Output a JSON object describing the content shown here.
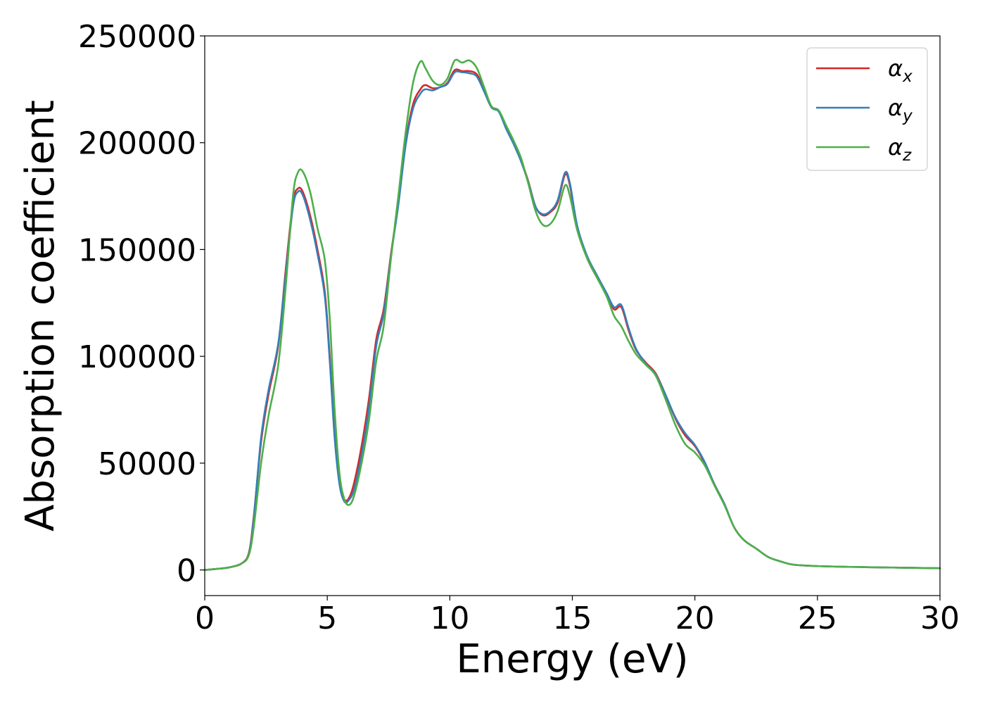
{
  "chart_data": {
    "type": "line",
    "title": "",
    "xlabel": "Energy (eV)",
    "ylabel": "Absorption coefficient",
    "xlim": [
      0,
      30
    ],
    "ylim": [
      -12000,
      250000
    ],
    "xticks": [
      0,
      5,
      10,
      15,
      20,
      25,
      30
    ],
    "yticks": [
      0,
      50000,
      100000,
      150000,
      200000,
      250000
    ],
    "grid": false,
    "legend_position": "top-right",
    "series": [
      {
        "name": "α_x",
        "label_base": "α",
        "label_sub": "x",
        "color": "#d62728",
        "points": [
          [
            0,
            0
          ],
          [
            0.5,
            500
          ],
          [
            1,
            1200
          ],
          [
            1.5,
            3000
          ],
          [
            1.8,
            8000
          ],
          [
            2,
            25000
          ],
          [
            2.3,
            60000
          ],
          [
            2.6,
            82000
          ],
          [
            3,
            105000
          ],
          [
            3.3,
            140000
          ],
          [
            3.6,
            172000
          ],
          [
            3.8,
            178500
          ],
          [
            4,
            177000
          ],
          [
            4.3,
            166000
          ],
          [
            4.6,
            150000
          ],
          [
            4.9,
            130000
          ],
          [
            5.1,
            100000
          ],
          [
            5.3,
            65000
          ],
          [
            5.5,
            42000
          ],
          [
            5.7,
            33000
          ],
          [
            5.9,
            34000
          ],
          [
            6.1,
            41000
          ],
          [
            6.4,
            58000
          ],
          [
            6.7,
            80000
          ],
          [
            7,
            108000
          ],
          [
            7.3,
            122000
          ],
          [
            7.6,
            148000
          ],
          [
            7.9,
            172000
          ],
          [
            8.2,
            200000
          ],
          [
            8.5,
            218000
          ],
          [
            8.8,
            225000
          ],
          [
            9,
            227000
          ],
          [
            9.3,
            225500
          ],
          [
            9.6,
            226000
          ],
          [
            9.9,
            228000
          ],
          [
            10.2,
            234000
          ],
          [
            10.5,
            233500
          ],
          [
            10.8,
            233500
          ],
          [
            11.1,
            232000
          ],
          [
            11.4,
            225000
          ],
          [
            11.7,
            217000
          ],
          [
            12,
            215000
          ],
          [
            12.3,
            207000
          ],
          [
            12.6,
            200000
          ],
          [
            12.9,
            192000
          ],
          [
            13.2,
            182000
          ],
          [
            13.5,
            170000
          ],
          [
            13.8,
            166000
          ],
          [
            14.1,
            167500
          ],
          [
            14.4,
            172000
          ],
          [
            14.7,
            185000
          ],
          [
            14.9,
            180000
          ],
          [
            15.2,
            160000
          ],
          [
            15.6,
            146000
          ],
          [
            16,
            137000
          ],
          [
            16.4,
            129000
          ],
          [
            16.7,
            122000
          ],
          [
            17,
            123000
          ],
          [
            17.3,
            112000
          ],
          [
            17.6,
            103000
          ],
          [
            18,
            97000
          ],
          [
            18.4,
            92000
          ],
          [
            18.8,
            82000
          ],
          [
            19.2,
            71000
          ],
          [
            19.6,
            63000
          ],
          [
            20,
            58000
          ],
          [
            20.4,
            50000
          ],
          [
            20.8,
            40000
          ],
          [
            21.2,
            31000
          ],
          [
            21.6,
            20000
          ],
          [
            22,
            14000
          ],
          [
            22.5,
            10000
          ],
          [
            23,
            6000
          ],
          [
            23.5,
            4000
          ],
          [
            24,
            2500
          ],
          [
            25,
            1800
          ],
          [
            27,
            1300
          ],
          [
            30,
            800
          ]
        ]
      },
      {
        "name": "α_y",
        "label_base": "α",
        "label_sub": "y",
        "color": "#377eb8",
        "points": [
          [
            0,
            0
          ],
          [
            0.5,
            500
          ],
          [
            1,
            1200
          ],
          [
            1.5,
            3000
          ],
          [
            1.8,
            7500
          ],
          [
            2,
            24000
          ],
          [
            2.3,
            62000
          ],
          [
            2.6,
            84000
          ],
          [
            3,
            106000
          ],
          [
            3.3,
            138000
          ],
          [
            3.6,
            170000
          ],
          [
            3.8,
            177000
          ],
          [
            4,
            175500
          ],
          [
            4.3,
            164000
          ],
          [
            4.6,
            148000
          ],
          [
            4.9,
            128000
          ],
          [
            5.1,
            98000
          ],
          [
            5.3,
            62000
          ],
          [
            5.5,
            40000
          ],
          [
            5.7,
            32000
          ],
          [
            5.9,
            33000
          ],
          [
            6.1,
            38000
          ],
          [
            6.4,
            54000
          ],
          [
            6.7,
            76000
          ],
          [
            7,
            105000
          ],
          [
            7.3,
            120000
          ],
          [
            7.6,
            147000
          ],
          [
            7.9,
            171000
          ],
          [
            8.2,
            199000
          ],
          [
            8.5,
            216000
          ],
          [
            8.8,
            223000
          ],
          [
            9,
            225000
          ],
          [
            9.3,
            224500
          ],
          [
            9.6,
            226000
          ],
          [
            9.9,
            227500
          ],
          [
            10.2,
            233000
          ],
          [
            10.5,
            233000
          ],
          [
            10.8,
            232500
          ],
          [
            11.1,
            231000
          ],
          [
            11.4,
            224000
          ],
          [
            11.7,
            216500
          ],
          [
            12,
            214500
          ],
          [
            12.3,
            206500
          ],
          [
            12.6,
            199500
          ],
          [
            12.9,
            191500
          ],
          [
            13.2,
            181500
          ],
          [
            13.5,
            170000
          ],
          [
            13.8,
            166500
          ],
          [
            14.1,
            168000
          ],
          [
            14.4,
            173000
          ],
          [
            14.7,
            186000
          ],
          [
            14.9,
            181000
          ],
          [
            15.2,
            161000
          ],
          [
            15.6,
            147000
          ],
          [
            16,
            138000
          ],
          [
            16.4,
            129500
          ],
          [
            16.7,
            123000
          ],
          [
            17,
            124000
          ],
          [
            17.3,
            113000
          ],
          [
            17.6,
            103500
          ],
          [
            18,
            96500
          ],
          [
            18.4,
            91500
          ],
          [
            18.8,
            82000
          ],
          [
            19.2,
            71500
          ],
          [
            19.6,
            64000
          ],
          [
            20,
            58500
          ],
          [
            20.4,
            50500
          ],
          [
            20.8,
            40000
          ],
          [
            21.2,
            31000
          ],
          [
            21.6,
            20000
          ],
          [
            22,
            14000
          ],
          [
            22.5,
            10000
          ],
          [
            23,
            6000
          ],
          [
            23.5,
            4000
          ],
          [
            24,
            2500
          ],
          [
            25,
            1800
          ],
          [
            27,
            1300
          ],
          [
            30,
            800
          ]
        ]
      },
      {
        "name": "α_z",
        "label_base": "α",
        "label_sub": "z",
        "color": "#4daf4a",
        "points": [
          [
            0,
            0
          ],
          [
            0.5,
            500
          ],
          [
            1,
            1200
          ],
          [
            1.5,
            3000
          ],
          [
            1.8,
            7000
          ],
          [
            2,
            20000
          ],
          [
            2.3,
            50000
          ],
          [
            2.6,
            72000
          ],
          [
            3,
            96000
          ],
          [
            3.3,
            132000
          ],
          [
            3.6,
            175000
          ],
          [
            3.8,
            186000
          ],
          [
            4,
            186500
          ],
          [
            4.3,
            177000
          ],
          [
            4.6,
            160000
          ],
          [
            4.9,
            145000
          ],
          [
            5.1,
            118000
          ],
          [
            5.3,
            75000
          ],
          [
            5.5,
            45000
          ],
          [
            5.7,
            33000
          ],
          [
            5.9,
            30500
          ],
          [
            6.1,
            35000
          ],
          [
            6.4,
            50000
          ],
          [
            6.7,
            70000
          ],
          [
            7,
            98000
          ],
          [
            7.3,
            114000
          ],
          [
            7.6,
            146000
          ],
          [
            7.9,
            175000
          ],
          [
            8.2,
            205000
          ],
          [
            8.5,
            228000
          ],
          [
            8.8,
            238000
          ],
          [
            9,
            235000
          ],
          [
            9.3,
            229000
          ],
          [
            9.6,
            227000
          ],
          [
            9.9,
            230000
          ],
          [
            10.2,
            238500
          ],
          [
            10.5,
            237500
          ],
          [
            10.8,
            238500
          ],
          [
            11.1,
            235000
          ],
          [
            11.4,
            226000
          ],
          [
            11.7,
            217000
          ],
          [
            12,
            215000
          ],
          [
            12.3,
            208000
          ],
          [
            12.6,
            201000
          ],
          [
            12.9,
            193000
          ],
          [
            13.2,
            181000
          ],
          [
            13.5,
            168000
          ],
          [
            13.8,
            161500
          ],
          [
            14.1,
            162000
          ],
          [
            14.4,
            168000
          ],
          [
            14.7,
            180000
          ],
          [
            14.9,
            175000
          ],
          [
            15.2,
            159000
          ],
          [
            15.6,
            146000
          ],
          [
            16,
            137000
          ],
          [
            16.4,
            128000
          ],
          [
            16.7,
            119000
          ],
          [
            17,
            114000
          ],
          [
            17.3,
            107000
          ],
          [
            17.6,
            101000
          ],
          [
            18,
            96000
          ],
          [
            18.4,
            91000
          ],
          [
            18.8,
            80000
          ],
          [
            19.2,
            68000
          ],
          [
            19.6,
            59000
          ],
          [
            20,
            55000
          ],
          [
            20.4,
            49000
          ],
          [
            20.8,
            39500
          ],
          [
            21.2,
            30500
          ],
          [
            21.6,
            20000
          ],
          [
            22,
            14000
          ],
          [
            22.5,
            10000
          ],
          [
            23,
            6000
          ],
          [
            23.5,
            4000
          ],
          [
            24,
            2500
          ],
          [
            25,
            1800
          ],
          [
            27,
            1300
          ],
          [
            30,
            800
          ]
        ]
      }
    ]
  }
}
